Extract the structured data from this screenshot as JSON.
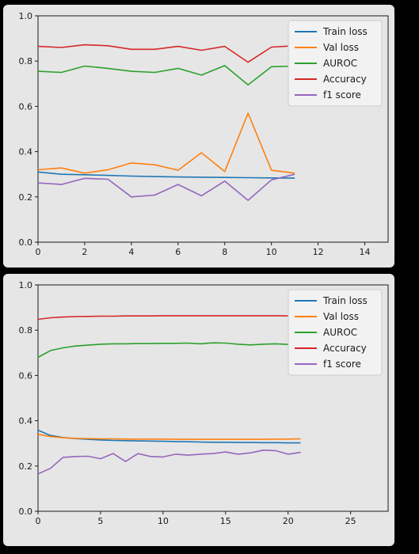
{
  "chart_data": [
    {
      "type": "line",
      "title": "",
      "xlabel": "",
      "ylabel": "",
      "xlim": [
        0,
        15
      ],
      "ylim": [
        0.0,
        1.0
      ],
      "xticks": [
        0,
        2,
        4,
        6,
        8,
        10,
        12,
        14
      ],
      "yticks": [
        0.0,
        0.2,
        0.4,
        0.6,
        0.8,
        1.0
      ],
      "grid": false,
      "legend": "top-right",
      "x": [
        0,
        1,
        2,
        3,
        4,
        5,
        6,
        7,
        8,
        9,
        10,
        11
      ],
      "series": [
        {
          "name": "Train loss",
          "color": "#1f77b4",
          "values": [
            0.31,
            0.3,
            0.298,
            0.295,
            0.292,
            0.29,
            0.288,
            0.287,
            0.286,
            0.285,
            0.284,
            0.283
          ]
        },
        {
          "name": "Val loss",
          "color": "#ff7f0e",
          "values": [
            0.32,
            0.328,
            0.305,
            0.32,
            0.35,
            0.342,
            0.318,
            0.395,
            0.312,
            0.57,
            0.318,
            0.305
          ]
        },
        {
          "name": "AUROC",
          "color": "#2ca02c",
          "values": [
            0.755,
            0.75,
            0.778,
            0.768,
            0.755,
            0.75,
            0.768,
            0.738,
            0.78,
            0.695,
            0.775,
            0.778
          ]
        },
        {
          "name": "Accuracy",
          "color": "#d62728",
          "values": [
            0.865,
            0.86,
            0.872,
            0.868,
            0.852,
            0.852,
            0.865,
            0.848,
            0.865,
            0.795,
            0.862,
            0.868
          ]
        },
        {
          "name": "f1 score",
          "color": "#9467bd",
          "values": [
            0.262,
            0.255,
            0.282,
            0.278,
            0.2,
            0.208,
            0.255,
            0.205,
            0.27,
            0.185,
            0.275,
            0.3
          ]
        }
      ]
    },
    {
      "type": "line",
      "title": "",
      "xlabel": "",
      "ylabel": "",
      "xlim": [
        0,
        28
      ],
      "ylim": [
        0.0,
        1.0
      ],
      "xticks": [
        0,
        5,
        10,
        15,
        20,
        25
      ],
      "yticks": [
        0.0,
        0.2,
        0.4,
        0.6,
        0.8,
        1.0
      ],
      "grid": false,
      "legend": "top-right",
      "x": [
        0,
        1,
        2,
        3,
        4,
        5,
        6,
        7,
        8,
        9,
        10,
        11,
        12,
        13,
        14,
        15,
        16,
        17,
        18,
        19,
        20,
        21
      ],
      "series": [
        {
          "name": "Train loss",
          "color": "#1f77b4",
          "values": [
            0.358,
            0.335,
            0.326,
            0.321,
            0.318,
            0.315,
            0.313,
            0.312,
            0.311,
            0.31,
            0.309,
            0.308,
            0.307,
            0.306,
            0.305,
            0.305,
            0.304,
            0.304,
            0.303,
            0.303,
            0.302,
            0.302
          ]
        },
        {
          "name": "Val loss",
          "color": "#ff7f0e",
          "values": [
            0.34,
            0.33,
            0.325,
            0.322,
            0.321,
            0.32,
            0.32,
            0.319,
            0.319,
            0.319,
            0.319,
            0.318,
            0.318,
            0.318,
            0.318,
            0.318,
            0.318,
            0.318,
            0.318,
            0.319,
            0.319,
            0.32
          ]
        },
        {
          "name": "AUROC",
          "color": "#2ca02c",
          "values": [
            0.68,
            0.71,
            0.722,
            0.73,
            0.734,
            0.738,
            0.74,
            0.74,
            0.741,
            0.741,
            0.742,
            0.742,
            0.743,
            0.74,
            0.744,
            0.743,
            0.738,
            0.735,
            0.738,
            0.74,
            0.737,
            0.736
          ]
        },
        {
          "name": "Accuracy",
          "color": "#d62728",
          "values": [
            0.848,
            0.855,
            0.858,
            0.86,
            0.861,
            0.862,
            0.862,
            0.863,
            0.863,
            0.863,
            0.864,
            0.864,
            0.864,
            0.864,
            0.864,
            0.864,
            0.864,
            0.864,
            0.864,
            0.864,
            0.863,
            0.863
          ]
        },
        {
          "name": "f1 score",
          "color": "#9467bd",
          "values": [
            0.165,
            0.19,
            0.238,
            0.242,
            0.243,
            0.232,
            0.255,
            0.22,
            0.255,
            0.242,
            0.24,
            0.252,
            0.248,
            0.252,
            0.255,
            0.262,
            0.252,
            0.258,
            0.27,
            0.268,
            0.252,
            0.26
          ]
        }
      ]
    }
  ]
}
